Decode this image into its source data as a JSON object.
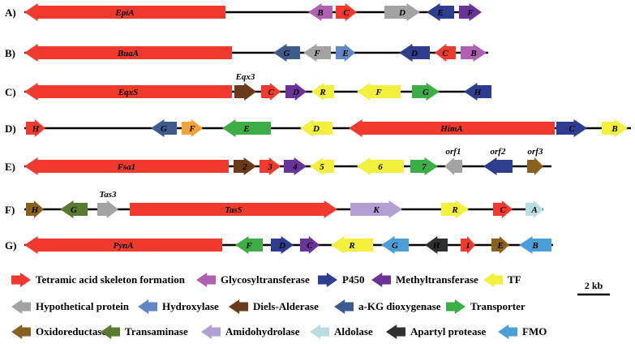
{
  "colors": {
    "red": "#f03a2e",
    "magenta": "#b060b0",
    "navy": "#2e3d8f",
    "purple": "#6a3399",
    "yellow": "#f2f03c",
    "gray": "#a3a3a3",
    "steel": "#5e87c4",
    "brown": "#6a3a1a",
    "slate": "#3f5a8c",
    "green": "#3cae45",
    "olive": "#8a6020",
    "darkgreen": "#5a7a30",
    "lavender": "#b3a0d3",
    "lightblue": "#b8dde0",
    "black": "#303030",
    "skyblue": "#4a9fd8",
    "orange": "#f3a23a"
  },
  "rows": [
    {
      "label": "A)",
      "genes": [
        {
          "name": "EpiA",
          "dir": "L",
          "color": "red"
        },
        {
          "name": "B",
          "dir": "L",
          "color": "magenta"
        },
        {
          "name": "C",
          "dir": "R",
          "color": "red"
        },
        {
          "name": "D",
          "dir": "R",
          "color": "gray"
        },
        {
          "name": "E",
          "dir": "L",
          "color": "navy"
        },
        {
          "name": "F",
          "dir": "R",
          "color": "purple"
        }
      ]
    },
    {
      "label": "B)",
      "genes": [
        {
          "name": "BuaA",
          "dir": "L",
          "color": "red"
        },
        {
          "name": "G",
          "dir": "L",
          "color": "slate"
        },
        {
          "name": "F",
          "dir": "L",
          "color": "gray"
        },
        {
          "name": "E",
          "dir": "R",
          "color": "steel"
        },
        {
          "name": "D",
          "dir": "L",
          "color": "navy"
        },
        {
          "name": "C",
          "dir": "L",
          "color": "red"
        },
        {
          "name": "B",
          "dir": "R",
          "color": "magenta"
        }
      ]
    },
    {
      "label": "C)",
      "genes": [
        {
          "name": "EqxS",
          "dir": "L",
          "color": "red"
        },
        {
          "name": "",
          "dir": "R",
          "color": "brown",
          "above": "Eqx3"
        },
        {
          "name": "C",
          "dir": "R",
          "color": "red"
        },
        {
          "name": "D",
          "dir": "R",
          "color": "purple"
        },
        {
          "name": "R",
          "dir": "L",
          "color": "yellow"
        },
        {
          "name": "F",
          "dir": "L",
          "color": "yellow"
        },
        {
          "name": "G",
          "dir": "R",
          "color": "green"
        },
        {
          "name": "H",
          "dir": "L",
          "color": "navy"
        }
      ]
    },
    {
      "label": "D)",
      "genes": [
        {
          "name": "H",
          "dir": "R",
          "color": "red"
        },
        {
          "name": "G",
          "dir": "L",
          "color": "slate"
        },
        {
          "name": "F",
          "dir": "R",
          "color": "orange"
        },
        {
          "name": "E",
          "dir": "L",
          "color": "green"
        },
        {
          "name": "D",
          "dir": "L",
          "color": "yellow"
        },
        {
          "name": "HimA",
          "dir": "L",
          "color": "red"
        },
        {
          "name": "C",
          "dir": "R",
          "color": "navy"
        },
        {
          "name": "B",
          "dir": "R",
          "color": "yellow"
        }
      ]
    },
    {
      "label": "E)",
      "genes": [
        {
          "name": "Fsa1",
          "dir": "L",
          "color": "red"
        },
        {
          "name": "2",
          "dir": "R",
          "color": "brown"
        },
        {
          "name": "3",
          "dir": "R",
          "color": "red"
        },
        {
          "name": "4",
          "dir": "R",
          "color": "purple"
        },
        {
          "name": "5",
          "dir": "L",
          "color": "yellow"
        },
        {
          "name": "6",
          "dir": "L",
          "color": "yellow"
        },
        {
          "name": "7",
          "dir": "R",
          "color": "green"
        },
        {
          "name": "",
          "dir": "L",
          "color": "gray",
          "above": "orf1"
        },
        {
          "name": "",
          "dir": "L",
          "color": "navy",
          "above": "orf2"
        },
        {
          "name": "",
          "dir": "R",
          "color": "olive",
          "above": "orf3"
        }
      ]
    },
    {
      "label": "F)",
      "genes": [
        {
          "name": "H",
          "dir": "R",
          "color": "olive"
        },
        {
          "name": "G",
          "dir": "L",
          "color": "darkgreen"
        },
        {
          "name": "",
          "dir": "R",
          "color": "gray",
          "above": "Tas3"
        },
        {
          "name": "TasS",
          "dir": "R",
          "color": "red"
        },
        {
          "name": "K",
          "dir": "R",
          "color": "lavender"
        },
        {
          "name": "R",
          "dir": "R",
          "color": "yellow"
        },
        {
          "name": "C",
          "dir": "R",
          "color": "red"
        },
        {
          "name": "A",
          "dir": "R",
          "color": "lightblue"
        }
      ]
    },
    {
      "label": "G)",
      "genes": [
        {
          "name": "PynA",
          "dir": "L",
          "color": "red"
        },
        {
          "name": "F",
          "dir": "L",
          "color": "green"
        },
        {
          "name": "D",
          "dir": "R",
          "color": "navy"
        },
        {
          "name": "C",
          "dir": "R",
          "color": "purple"
        },
        {
          "name": "R",
          "dir": "L",
          "color": "yellow"
        },
        {
          "name": "G",
          "dir": "L",
          "color": "skyblue"
        },
        {
          "name": "H",
          "dir": "L",
          "color": "black"
        },
        {
          "name": "I",
          "dir": "R",
          "color": "red"
        },
        {
          "name": "E",
          "dir": "R",
          "color": "olive"
        },
        {
          "name": "B",
          "dir": "L",
          "color": "skyblue"
        }
      ]
    }
  ],
  "legend": [
    {
      "label": "Tetramic acid skeleton formation",
      "color": "red",
      "dir": "R"
    },
    {
      "label": "Glycosyltransferase",
      "color": "magenta",
      "dir": "L"
    },
    {
      "label": "P450",
      "color": "navy",
      "dir": "R"
    },
    {
      "label": "Methyltransferase",
      "color": "purple",
      "dir": "L"
    },
    {
      "label": "TF",
      "color": "yellow",
      "dir": "L"
    },
    {
      "label": "Hypothetical protein",
      "color": "gray",
      "dir": "L"
    },
    {
      "label": "Hydroxylase",
      "color": "steel",
      "dir": "L"
    },
    {
      "label": "Diels-Alderase",
      "color": "brown",
      "dir": "L"
    },
    {
      "label": "a-KG dioxygenase",
      "color": "slate",
      "dir": "L"
    },
    {
      "label": "Transporter",
      "color": "green",
      "dir": "R"
    },
    {
      "label": "Oxidoreductase",
      "color": "olive",
      "dir": "L"
    },
    {
      "label": "Transaminase",
      "color": "darkgreen",
      "dir": "L"
    },
    {
      "label": "Amidohydrolase",
      "color": "lavender",
      "dir": "L"
    },
    {
      "label": "Aldolase",
      "color": "lightblue",
      "dir": "L"
    },
    {
      "label": "Apartyl protease",
      "color": "black",
      "dir": "L"
    },
    {
      "label": "FMO",
      "color": "skyblue",
      "dir": "L"
    }
  ],
  "scale_bar": {
    "label": "2 kb"
  }
}
